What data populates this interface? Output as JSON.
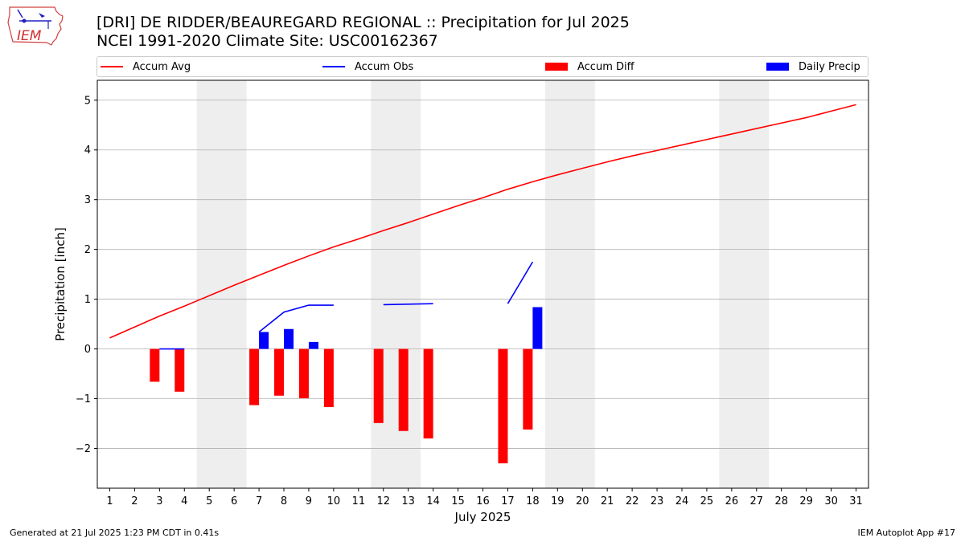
{
  "header": {
    "title_line1": "[DRI] DE RIDDER/BEAUREGARD REGIONAL :: Precipitation for Jul 2025",
    "title_line2": "NCEI 1991-2020 Climate Site: USC00162367"
  },
  "logo": {
    "text": "IEM",
    "icon": "iem-iowa-logo-icon"
  },
  "footer": {
    "left": "Generated at 21 Jul 2025 1:23 PM CDT in 0.41s",
    "right": "IEM Autoplot App #17"
  },
  "legend": [
    {
      "label": "Accum Avg",
      "kind": "line",
      "color": "#ff0000"
    },
    {
      "label": "Accum Obs",
      "kind": "line",
      "color": "#0000ff"
    },
    {
      "label": "Accum Diff",
      "kind": "box",
      "color": "#ff0000"
    },
    {
      "label": "Daily Precip",
      "kind": "box",
      "color": "#0000ff"
    }
  ],
  "chart_data": {
    "type": "bar",
    "xlabel": "July 2025",
    "ylabel": "Precipitation [inch]",
    "x": [
      1,
      2,
      3,
      4,
      5,
      6,
      7,
      8,
      9,
      10,
      11,
      12,
      13,
      14,
      15,
      16,
      17,
      18,
      19,
      20,
      21,
      22,
      23,
      24,
      25,
      26,
      27,
      28,
      29,
      30,
      31
    ],
    "xlim": [
      0.5,
      31.5
    ],
    "ylim": [
      -2.8,
      5.4
    ],
    "yticks": [
      -2,
      -1,
      0,
      1,
      2,
      3,
      4,
      5
    ],
    "ytick_labels": [
      "−2",
      "−1",
      "0",
      "1",
      "2",
      "3",
      "4",
      "5"
    ],
    "grid": "horizontal",
    "weekend_shading": [
      [
        4.5,
        6.5
      ],
      [
        11.5,
        13.5
      ],
      [
        18.5,
        20.5
      ],
      [
        25.5,
        27.5
      ]
    ],
    "accum_avg": [
      0.22,
      0.44,
      0.66,
      0.86,
      1.07,
      1.28,
      1.48,
      1.68,
      1.87,
      2.05,
      2.21,
      2.38,
      2.54,
      2.71,
      2.88,
      3.04,
      3.21,
      3.36,
      3.5,
      3.63,
      3.76,
      3.88,
      3.99,
      4.1,
      4.21,
      4.32,
      4.43,
      4.54,
      4.65,
      4.78,
      4.91
    ],
    "accum_obs_segments": [
      [
        [
          3,
          0.0
        ],
        [
          4,
          0.0
        ]
      ],
      [
        [
          7,
          0.34
        ],
        [
          8,
          0.74
        ],
        [
          9,
          0.88
        ],
        [
          10,
          0.88
        ]
      ],
      [
        [
          12,
          0.89
        ],
        [
          13,
          0.9
        ],
        [
          14,
          0.91
        ]
      ],
      [
        [
          17,
          0.91
        ],
        [
          18,
          1.75
        ]
      ]
    ],
    "accum_diff": [
      {
        "day": 3,
        "value": -0.66
      },
      {
        "day": 4,
        "value": -0.86
      },
      {
        "day": 7,
        "value": -1.13
      },
      {
        "day": 8,
        "value": -0.94
      },
      {
        "day": 9,
        "value": -0.99
      },
      {
        "day": 10,
        "value": -1.17
      },
      {
        "day": 12,
        "value": -1.49
      },
      {
        "day": 13,
        "value": -1.65
      },
      {
        "day": 14,
        "value": -1.8
      },
      {
        "day": 17,
        "value": -2.3
      },
      {
        "day": 18,
        "value": -1.62
      }
    ],
    "daily_precip": [
      {
        "day": 7,
        "value": 0.34
      },
      {
        "day": 8,
        "value": 0.4
      },
      {
        "day": 9,
        "value": 0.14
      },
      {
        "day": 18,
        "value": 0.84
      }
    ],
    "colors": {
      "accum_avg": "#ff0000",
      "accum_obs": "#0000ff",
      "accum_diff": "#ff0000",
      "daily_precip": "#0000ff",
      "weekend": "#eeeeee",
      "grid": "#b0b0b0"
    }
  }
}
